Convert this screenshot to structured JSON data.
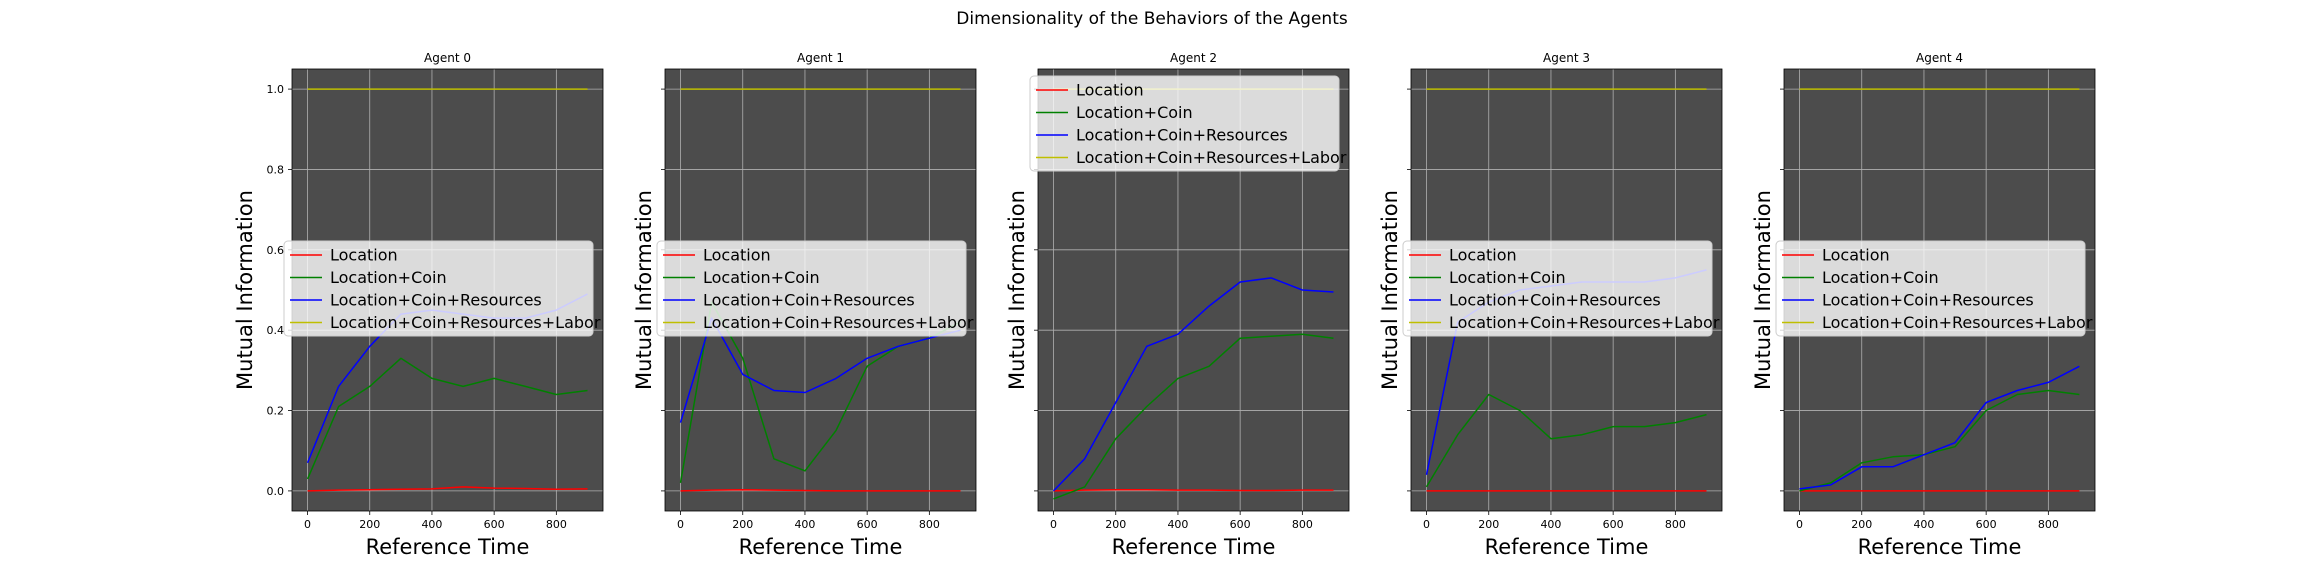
{
  "chart_data": {
    "type": "line",
    "title": "Dimensionality of the Behaviors of the Agents",
    "xlabel": "Reference Time",
    "ylabel": "Mutual Information",
    "xlim": [
      -50,
      950
    ],
    "ylim": [
      -0.05,
      1.05
    ],
    "xticks": [
      0,
      200,
      400,
      600,
      800
    ],
    "yticks": [
      0.0,
      0.2,
      0.4,
      0.6,
      0.8,
      1.0
    ],
    "ytick_labels": [
      "0.0",
      "0.2",
      "0.4",
      "0.6",
      "0.8",
      "1.0"
    ],
    "grid": true,
    "sharey": true,
    "x": [
      0,
      100,
      200,
      300,
      400,
      500,
      600,
      700,
      800,
      900
    ],
    "colors": {
      "Location": "#ff0000",
      "Location+Coin": "#008000",
      "Location+Coin+Resources": "#0000ff",
      "Location+Coin+Resources+Labor": "#bfbf00",
      "axes_bg": "#4c4c4c",
      "grid": "#b0b0b0"
    },
    "panels": [
      {
        "title": "Agent 0",
        "legend": "center-left",
        "series": [
          {
            "name": "Location",
            "values": [
              0.0,
              0.002,
              0.003,
              0.004,
              0.005,
              0.01,
              0.007,
              0.006,
              0.004,
              0.005
            ]
          },
          {
            "name": "Location+Coin",
            "values": [
              0.03,
              0.21,
              0.26,
              0.33,
              0.28,
              0.26,
              0.28,
              0.26,
              0.24,
              0.25
            ]
          },
          {
            "name": "Location+Coin+Resources",
            "values": [
              0.07,
              0.26,
              0.36,
              0.44,
              0.45,
              0.44,
              0.43,
              0.43,
              0.45,
              0.49
            ]
          },
          {
            "name": "Location+Coin+Resources+Labor",
            "values": [
              1.0,
              1.0,
              1.0,
              1.0,
              1.0,
              1.0,
              1.0,
              1.0,
              1.0,
              1.0
            ]
          }
        ]
      },
      {
        "title": "Agent 1",
        "legend": "center-left",
        "series": [
          {
            "name": "Location",
            "values": [
              0.0,
              0.002,
              0.003,
              0.002,
              0.001,
              0.0,
              0.0,
              0.0,
              0.0,
              0.0
            ]
          },
          {
            "name": "Location+Coin",
            "values": [
              0.02,
              0.47,
              0.33,
              0.08,
              0.05,
              0.15,
              0.31,
              0.36,
              0.38,
              0.42
            ]
          },
          {
            "name": "Location+Coin+Resources",
            "values": [
              0.17,
              0.43,
              0.29,
              0.25,
              0.245,
              0.28,
              0.33,
              0.36,
              0.38,
              0.4
            ]
          },
          {
            "name": "Location+Coin+Resources+Labor",
            "values": [
              1.0,
              1.0,
              1.0,
              1.0,
              1.0,
              1.0,
              1.0,
              1.0,
              1.0,
              1.0
            ]
          }
        ]
      },
      {
        "title": "Agent 2",
        "legend": "upper-left",
        "series": [
          {
            "name": "Location",
            "values": [
              0.0,
              0.002,
              0.003,
              0.003,
              0.002,
              0.002,
              0.001,
              0.001,
              0.002,
              0.002
            ]
          },
          {
            "name": "Location+Coin",
            "values": [
              -0.02,
              0.01,
              0.13,
              0.21,
              0.28,
              0.31,
              0.38,
              0.385,
              0.39,
              0.38
            ]
          },
          {
            "name": "Location+Coin+Resources",
            "values": [
              0.0,
              0.08,
              0.22,
              0.36,
              0.39,
              0.46,
              0.52,
              0.53,
              0.5,
              0.495
            ]
          },
          {
            "name": "Location+Coin+Resources+Labor",
            "values": [
              1.0,
              1.0,
              1.0,
              1.0,
              1.0,
              1.0,
              1.0,
              1.0,
              1.0,
              1.0
            ]
          }
        ]
      },
      {
        "title": "Agent 3",
        "legend": "center-left",
        "series": [
          {
            "name": "Location",
            "values": [
              0.0,
              0.0,
              0.0,
              0.0,
              0.0,
              0.0,
              0.0,
              0.0,
              0.0,
              0.0
            ]
          },
          {
            "name": "Location+Coin",
            "values": [
              0.01,
              0.14,
              0.24,
              0.2,
              0.13,
              0.14,
              0.16,
              0.16,
              0.17,
              0.19
            ]
          },
          {
            "name": "Location+Coin+Resources",
            "values": [
              0.04,
              0.42,
              0.47,
              0.5,
              0.51,
              0.52,
              0.52,
              0.52,
              0.53,
              0.55
            ]
          },
          {
            "name": "Location+Coin+Resources+Labor",
            "values": [
              1.0,
              1.0,
              1.0,
              1.0,
              1.0,
              1.0,
              1.0,
              1.0,
              1.0,
              1.0
            ]
          }
        ]
      },
      {
        "title": "Agent 4",
        "legend": "center-left",
        "series": [
          {
            "name": "Location",
            "values": [
              0.0,
              0.0,
              0.0,
              0.0,
              0.0,
              0.0,
              0.0,
              0.0,
              0.0,
              0.0
            ]
          },
          {
            "name": "Location+Coin",
            "values": [
              0.0,
              0.02,
              0.07,
              0.085,
              0.09,
              0.11,
              0.2,
              0.24,
              0.25,
              0.24
            ]
          },
          {
            "name": "Location+Coin+Resources",
            "values": [
              0.005,
              0.015,
              0.06,
              0.06,
              0.09,
              0.12,
              0.22,
              0.25,
              0.27,
              0.31
            ]
          },
          {
            "name": "Location+Coin+Resources+Labor",
            "values": [
              1.0,
              1.0,
              1.0,
              1.0,
              1.0,
              1.0,
              1.0,
              1.0,
              1.0,
              1.0
            ]
          }
        ]
      }
    ]
  }
}
